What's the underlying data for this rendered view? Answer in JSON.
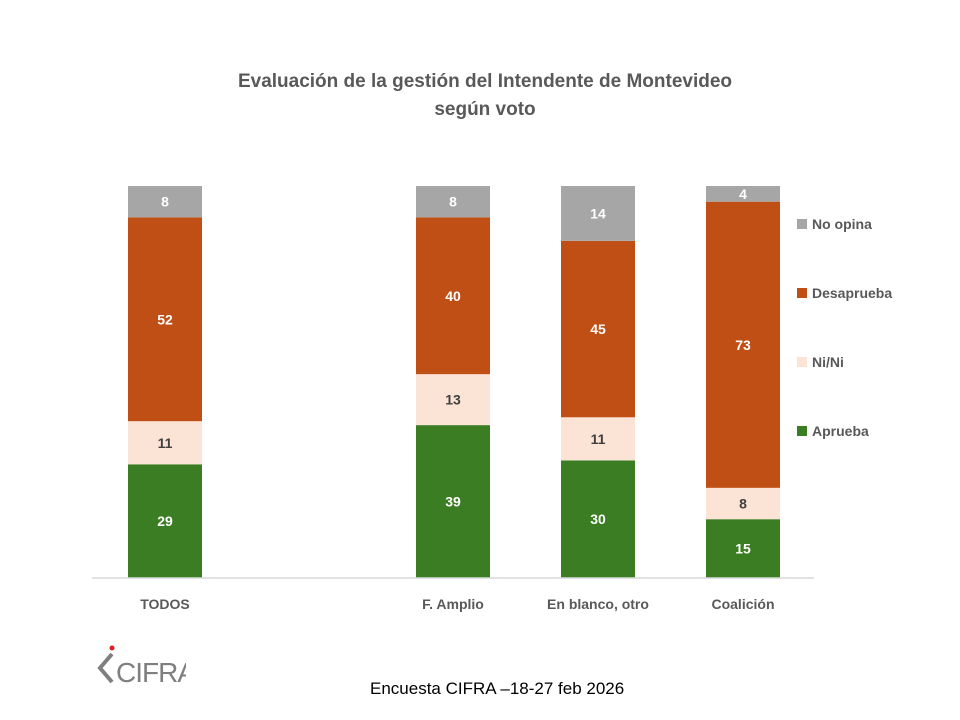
{
  "chart_data": {
    "type": "bar",
    "stacked": true,
    "title": [
      "Evaluación de la gestión del Intendente de Montevideo",
      "según voto"
    ],
    "xlabel": "",
    "ylabel": "",
    "ylim": [
      0,
      100
    ],
    "grid": false,
    "legend_position": "right",
    "categories": [
      "TODOS",
      "F. Amplio",
      "En blanco, otro",
      "Coalición"
    ],
    "series": [
      {
        "name": "Aprueba",
        "color": "#3A7D22",
        "label_color": "#ffffff",
        "values": [
          29,
          39,
          30,
          15
        ]
      },
      {
        "name": "Ni/Ni",
        "color": "#FBE3D6",
        "label_color": "#404040",
        "values": [
          11,
          13,
          11,
          8
        ]
      },
      {
        "name": "Desaprueba",
        "color": "#C04F15",
        "label_color": "#ffffff",
        "values": [
          52,
          40,
          45,
          73
        ]
      },
      {
        "name": "No opina",
        "color": "#A6A6A6",
        "label_color": "#ffffff",
        "values": [
          8,
          8,
          14,
          4
        ]
      }
    ],
    "legend_order": [
      "No opina",
      "Desaprueba",
      "Ni/Ni",
      "Aprueba"
    ]
  },
  "footer": {
    "source": "Encuesta CIFRA –18-27 feb 2026",
    "logo_text": "CIFRA"
  }
}
